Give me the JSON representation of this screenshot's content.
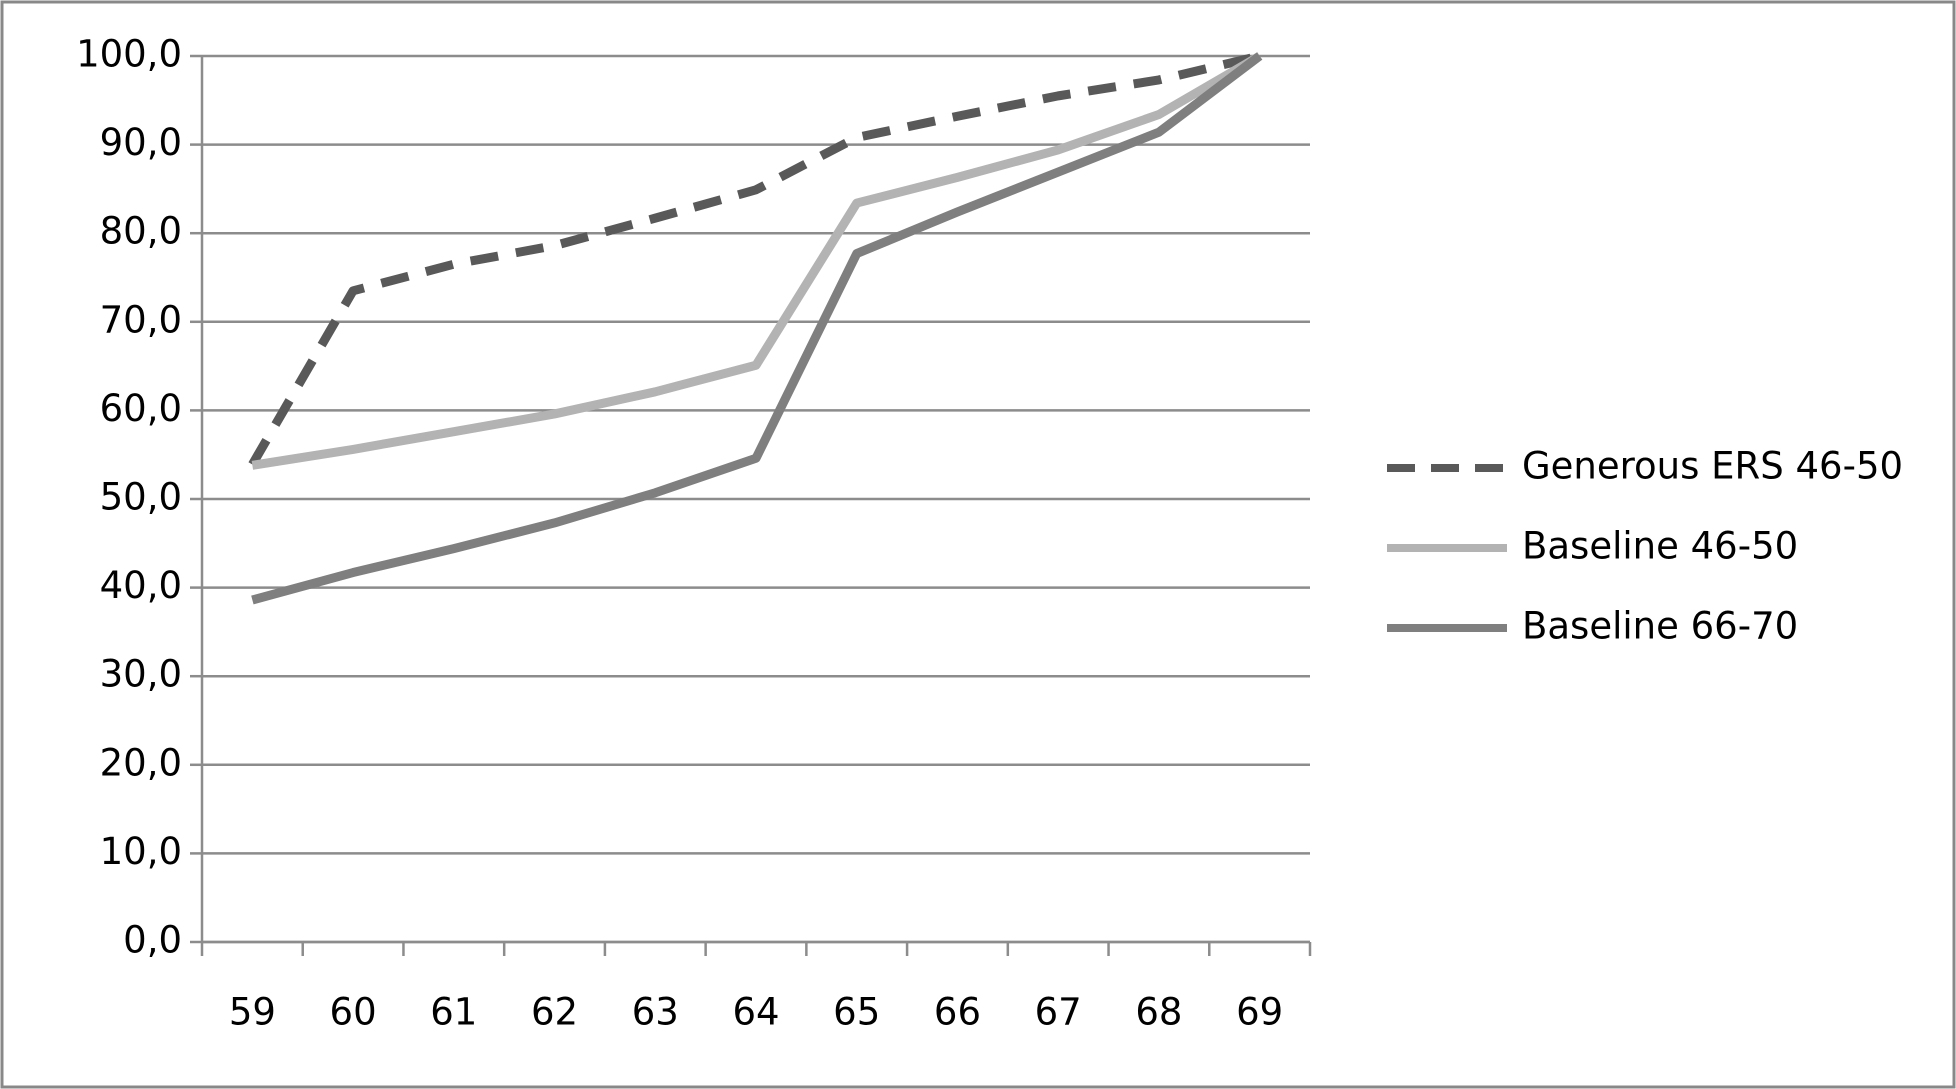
{
  "chart_data": {
    "type": "line",
    "categories": [
      "59",
      "60",
      "61",
      "62",
      "63",
      "64",
      "65",
      "66",
      "67",
      "68",
      "69"
    ],
    "series": [
      {
        "name": "Generous ERS 46-50",
        "color": "#595959",
        "dashed": true,
        "values": [
          53.9,
          73.5,
          76.5,
          78.6,
          81.7,
          84.9,
          90.8,
          93.2,
          95.5,
          97.3,
          100
        ]
      },
      {
        "name": "Baseline 46-50",
        "color": "#b3b3b3",
        "dashed": false,
        "values": [
          53.8,
          55.6,
          57.6,
          59.6,
          62.1,
          65.1,
          83.4,
          86.3,
          89.4,
          93.4,
          100
        ]
      },
      {
        "name": "Baseline 66-70",
        "color": "#7f7f7f",
        "dashed": false,
        "values": [
          38.6,
          41.7,
          44.4,
          47.3,
          50.7,
          54.6,
          77.7,
          82.4,
          86.9,
          91.4,
          100
        ]
      }
    ],
    "ylim": [
      0,
      100
    ],
    "yticks": [
      {
        "value": 0,
        "label": "0,0"
      },
      {
        "value": 10,
        "label": "10,0"
      },
      {
        "value": 20,
        "label": "20,0"
      },
      {
        "value": 30,
        "label": "30,0"
      },
      {
        "value": 40,
        "label": "40,0"
      },
      {
        "value": 50,
        "label": "50,0"
      },
      {
        "value": 60,
        "label": "60,0"
      },
      {
        "value": 70,
        "label": "70,0"
      },
      {
        "value": 80,
        "label": "80,0"
      },
      {
        "value": 90,
        "label": "90,0"
      },
      {
        "value": 100,
        "label": "100,0"
      }
    ],
    "grid": true,
    "legend": "right"
  }
}
